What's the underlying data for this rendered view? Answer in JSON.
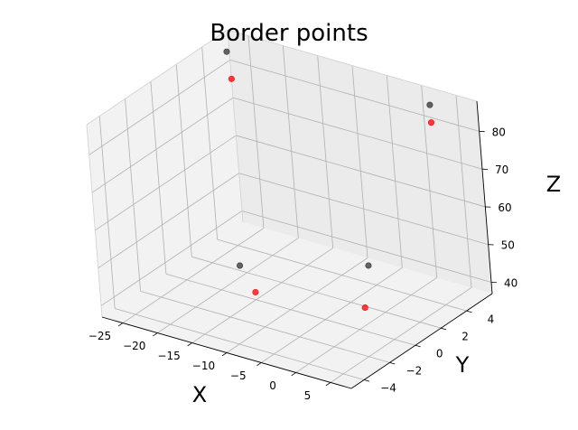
{
  "chart_data": {
    "type": "scatter",
    "projection": "3d",
    "title": "Border points",
    "xlabel": "X",
    "ylabel": "Y",
    "zlabel": "Z",
    "xlim": [
      -28,
      8
    ],
    "ylim": [
      -5,
      6
    ],
    "zlim": [
      37,
      88
    ],
    "xticks": [
      -25,
      -20,
      -15,
      -10,
      -5,
      0,
      5
    ],
    "yticks": [
      -4,
      -2,
      0,
      2,
      4
    ],
    "zticks": [
      40,
      50,
      60,
      70,
      80
    ],
    "grid": true,
    "series": [
      {
        "color": "#333333",
        "points": [
          {
            "x": -26,
            "y": 4.8,
            "z": 86
          },
          {
            "x": 2,
            "y": 5.5,
            "z": 85
          },
          {
            "x": -17,
            "y": 0,
            "z": 45
          },
          {
            "x": 5,
            "y": -1.5,
            "z": 60
          }
        ]
      },
      {
        "color": "#ff0000",
        "points": [
          {
            "x": -25,
            "y": 4.5,
            "z": 80
          },
          {
            "x": 3,
            "y": 5.0,
            "z": 82
          },
          {
            "x": -15,
            "y": 0,
            "z": 39
          },
          {
            "x": 5,
            "y": -2.0,
            "z": 50
          }
        ]
      }
    ]
  }
}
